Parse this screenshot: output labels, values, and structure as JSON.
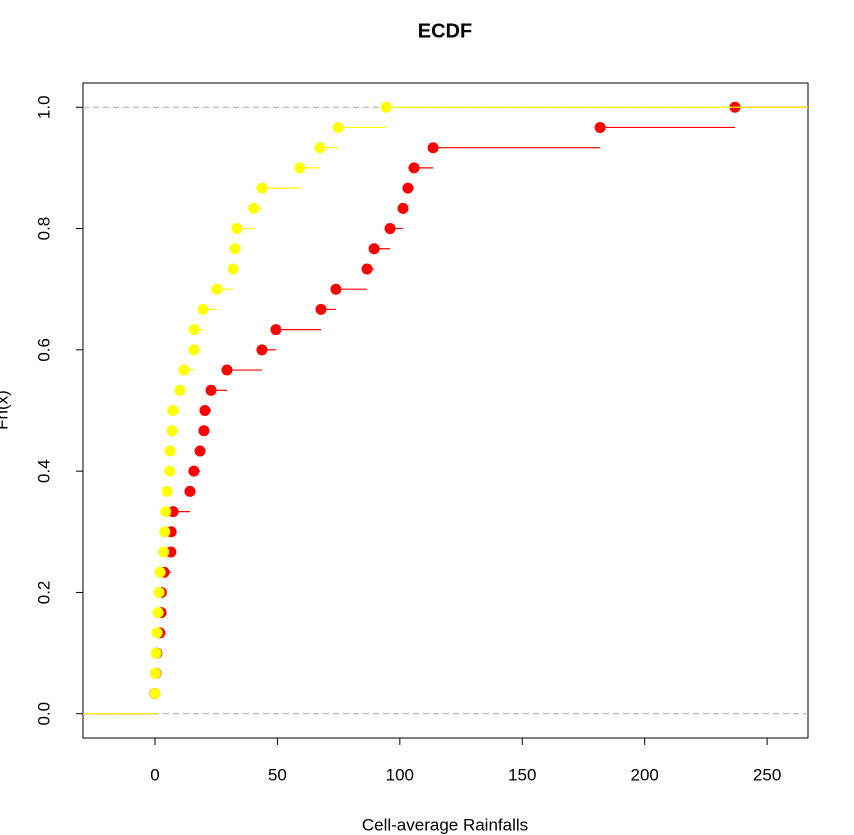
{
  "chart_data": {
    "type": "ecdf",
    "title": "ECDF",
    "x_label": "Cell-average Rainfalls",
    "y_label": "Fn(x)",
    "xlim": [
      -29.4,
      266.7
    ],
    "ylim": [
      -0.04,
      1.04
    ],
    "xticks": [
      0,
      50,
      100,
      150,
      200,
      250
    ],
    "yticks": [
      {
        "value": 0,
        "label": "0.0"
      },
      {
        "value": 0.2,
        "label": "0.2"
      },
      {
        "value": 0.4,
        "label": "0.4"
      },
      {
        "value": 0.6,
        "label": "0.6"
      },
      {
        "value": 0.8,
        "label": "0.8"
      },
      {
        "value": 1,
        "label": "1.0"
      }
    ],
    "reference_lines": [
      0,
      1
    ],
    "series": [
      {
        "color": "#ff0000",
        "x": [
          0,
          0.4,
          0.8,
          2,
          2.5,
          2.6,
          3.7,
          6.5,
          6.6,
          7.4,
          14.3,
          15.9,
          18.4,
          20,
          20.4,
          22.9,
          29.4,
          43.7,
          49.4,
          67.8,
          73.9,
          86.6,
          89.5,
          96,
          101.3,
          103.3,
          105.8,
          113.6,
          181.8,
          236.9
        ],
        "values": [
          0.0333,
          0.0667,
          0.1,
          0.1333,
          0.1667,
          0.2,
          0.2333,
          0.2667,
          0.3,
          0.3333,
          0.3667,
          0.4,
          0.4333,
          0.4667,
          0.5,
          0.5333,
          0.5667,
          0.6,
          0.6333,
          0.6667,
          0.7,
          0.7333,
          0.7667,
          0.8,
          0.8333,
          0.8667,
          0.9,
          0.9333,
          0.9667,
          1
        ]
      },
      {
        "color": "#ffff00",
        "x": [
          0.1,
          0.2,
          0.5,
          0.9,
          1.3,
          1.7,
          2.1,
          3.6,
          4,
          4.4,
          4.9,
          6,
          6.2,
          7,
          7.3,
          10.2,
          11.8,
          15.9,
          16,
          19.6,
          25.3,
          31.9,
          32.7,
          33.5,
          40.4,
          43.7,
          59.2,
          67.4,
          74.8,
          94.4
        ],
        "values": [
          0.0333,
          0.0667,
          0.1,
          0.1333,
          0.1667,
          0.2,
          0.2333,
          0.2667,
          0.3,
          0.3333,
          0.3667,
          0.4,
          0.4333,
          0.4667,
          0.5,
          0.5333,
          0.5667,
          0.6,
          0.6333,
          0.6667,
          0.7,
          0.7333,
          0.7667,
          0.8,
          0.8333,
          0.8667,
          0.9,
          0.9333,
          0.9667,
          1
        ]
      }
    ]
  }
}
